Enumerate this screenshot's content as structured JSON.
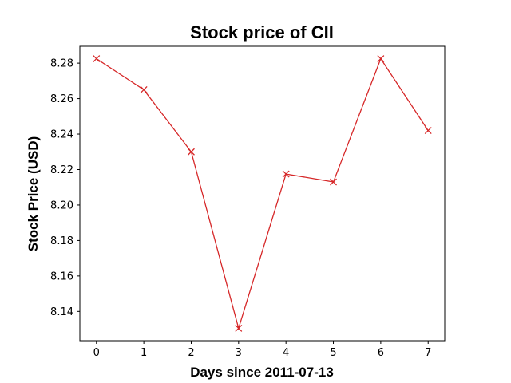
{
  "chart_data": {
    "type": "line",
    "title": "Stock price of CII",
    "xlabel": "Days since 2011-07-13",
    "ylabel": "Stock Price (USD)",
    "x": [
      0,
      1,
      2,
      3,
      4,
      5,
      6,
      7
    ],
    "series": [
      {
        "values": [
          8.2825,
          8.265,
          8.23,
          8.1305,
          8.2175,
          8.213,
          8.2825,
          8.242
        ]
      }
    ],
    "xticks": [
      "0",
      "1",
      "2",
      "3",
      "4",
      "5",
      "6",
      "7"
    ],
    "yticks": [
      "8.14",
      "8.16",
      "8.18",
      "8.20",
      "8.22",
      "8.24",
      "8.26",
      "8.28"
    ],
    "xlim": [
      -0.35,
      7.35
    ],
    "ylim": [
      8.1235,
      8.2895
    ],
    "line_color": "#d62728",
    "marker": "x",
    "grid": false
  }
}
